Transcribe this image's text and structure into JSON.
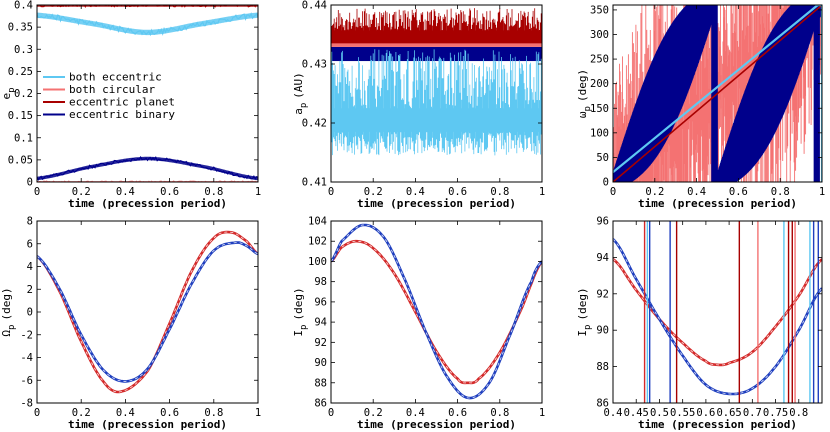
{
  "chart_data": [
    {
      "type": "line",
      "title": "",
      "xlabel": "time (precession period)",
      "ylabel": "e_p",
      "ylabel_main": "e",
      "ylabel_sub": "p",
      "xlim": [
        0,
        1
      ],
      "ylim": [
        0,
        0.4
      ],
      "xticks": [
        "0",
        "0.2",
        "0.4",
        "0.6",
        "0.8",
        "1"
      ],
      "yticks": [
        "0",
        "0.05",
        "0.1",
        "0.15",
        "0.2",
        "0.25",
        "0.3",
        "0.35",
        "0.4"
      ],
      "legend": {
        "position": "center-left",
        "entries": [
          "both eccentric",
          "both circular",
          "eccentric planet",
          "eccentric binary"
        ]
      },
      "series": [
        {
          "name": "eccentric planet",
          "color": "#a80000",
          "x": [
            0,
            1
          ],
          "values": [
            0.4,
            0.4
          ],
          "band": 0.004
        },
        {
          "name": "both eccentric",
          "color": "#5ec8f2",
          "x": [
            0,
            0.25,
            0.5,
            0.75,
            1
          ],
          "values": [
            0.377,
            0.358,
            0.338,
            0.358,
            0.377
          ],
          "band": 0.006
        },
        {
          "name": "eccentric binary",
          "color": "#00008b",
          "x": [
            0,
            0.25,
            0.5,
            0.75,
            1
          ],
          "values": [
            0.008,
            0.035,
            0.053,
            0.035,
            0.008
          ],
          "band": 0.004
        },
        {
          "name": "both circular",
          "color": "#f47272",
          "x": [
            0,
            1
          ],
          "values": [
            0.0,
            0.0
          ],
          "band": 0.002
        }
      ]
    },
    {
      "type": "line",
      "title": "",
      "xlabel": "time (precession period)",
      "ylabel": "a_p (AU)",
      "ylabel_main": "a",
      "ylabel_sub": "p",
      "ylabel_unit": "(AU)",
      "xlim": [
        0,
        1
      ],
      "ylim": [
        0.41,
        0.44
      ],
      "xticks": [
        "0",
        "0.2",
        "0.4",
        "0.6",
        "0.8",
        "1"
      ],
      "yticks": [
        "0.41",
        "0.42",
        "0.43",
        "0.44"
      ],
      "series": [
        {
          "name": "eccentric planet",
          "color": "#a80000",
          "x": [
            0,
            1
          ],
          "values": [
            0.4345,
            0.4345
          ],
          "band": 0.0012,
          "spikes_to": 0.4395
        },
        {
          "name": "eccentric binary",
          "color": "#00008b",
          "x": [
            0,
            1
          ],
          "values": [
            0.4317,
            0.4317
          ],
          "band": 0.0012
        },
        {
          "name": "both circular",
          "color": "#f47272",
          "x": [
            0,
            1
          ],
          "values": [
            0.4332,
            0.4332
          ],
          "band": 0.0003
        },
        {
          "name": "both eccentric",
          "color": "#5ec8f2",
          "x": [
            0,
            1
          ],
          "values": [
            0.4205,
            0.4205
          ],
          "band": 0.002,
          "spikes_to": 0.4325,
          "dips_to": 0.4145
        }
      ]
    },
    {
      "type": "line",
      "title": "",
      "xlabel": "time (precession period)",
      "ylabel": "ω_p (deg)",
      "ylabel_main": "ω",
      "ylabel_sub": "p",
      "ylabel_unit": "(deg)",
      "xlim": [
        0,
        1
      ],
      "ylim": [
        0,
        360
      ],
      "xticks": [
        "0",
        "0.2",
        "0.4",
        "0.6",
        "0.8",
        "1"
      ],
      "yticks": [
        "0",
        "50",
        "100",
        "150",
        "200",
        "250",
        "300",
        "350"
      ],
      "series": [
        {
          "name": "both circular",
          "color": "#f47272",
          "x": [
            0,
            1
          ],
          "values": [
            0,
            360
          ],
          "scatter": true
        },
        {
          "name": "eccentric binary",
          "color": "#00008b",
          "x": [
            0,
            0.47,
            0.5,
            0.97,
            1
          ],
          "values": [
            0,
            360,
            0,
            360,
            0
          ],
          "oscillating": true
        },
        {
          "name": "eccentric planet",
          "color": "#a80000",
          "x": [
            0,
            1
          ],
          "values": [
            0,
            360
          ]
        },
        {
          "name": "both eccentric",
          "color": "#5ec8f2",
          "x": [
            0,
            0.98,
            1
          ],
          "values": [
            20,
            360,
            0
          ]
        }
      ]
    },
    {
      "type": "line",
      "title": "",
      "xlabel": "time (precession period)",
      "ylabel": "Ω_p (deg)",
      "ylabel_main": "Ω",
      "ylabel_sub": "p",
      "ylabel_unit": "(deg)",
      "xlim": [
        0,
        1
      ],
      "ylim": [
        -8,
        8
      ],
      "xticks": [
        "0",
        "0.2",
        "0.4",
        "0.6",
        "0.8",
        "1"
      ],
      "yticks": [
        "-8",
        "-6",
        "-4",
        "-2",
        "0",
        "2",
        "4",
        "6",
        "8"
      ],
      "series": [
        {
          "name": "eccentric planet",
          "color": "#d42a2a",
          "x": [
            0,
            0.1,
            0.2,
            0.3,
            0.38,
            0.5,
            0.6,
            0.7,
            0.8,
            0.88,
            0.95,
            1.0
          ],
          "values": [
            4.9,
            1.9,
            -2.6,
            -6.1,
            -7.0,
            -5.2,
            -1.0,
            3.6,
            6.5,
            7.0,
            6.2,
            5.1
          ]
        },
        {
          "name": "eccentric binary",
          "color": "#1f3fbf",
          "x": [
            0,
            0.1,
            0.2,
            0.3,
            0.4,
            0.5,
            0.6,
            0.7,
            0.8,
            0.9,
            0.95,
            1.0
          ],
          "values": [
            4.9,
            2.1,
            -2.0,
            -5.1,
            -6.1,
            -5.0,
            -1.5,
            2.5,
            5.4,
            6.1,
            5.8,
            5.1
          ]
        }
      ]
    },
    {
      "type": "line",
      "title": "",
      "xlabel": "time (precession period)",
      "ylabel": "I_p (deg)",
      "ylabel_main": "I",
      "ylabel_sub": "p",
      "ylabel_unit": "(deg)",
      "xlim": [
        0,
        1
      ],
      "ylim": [
        86,
        104
      ],
      "xticks": [
        "0",
        "0.2",
        "0.4",
        "0.6",
        "0.8",
        "1"
      ],
      "yticks": [
        "86",
        "88",
        "90",
        "92",
        "94",
        "96",
        "98",
        "100",
        "102",
        "104"
      ],
      "series": [
        {
          "name": "eccentric planet",
          "color": "#d42a2a",
          "x": [
            0,
            0.05,
            0.12,
            0.2,
            0.3,
            0.4,
            0.5,
            0.6,
            0.65,
            0.7,
            0.8,
            0.9,
            1.0
          ],
          "values": [
            100.0,
            101.4,
            102.0,
            101.3,
            98.8,
            95.0,
            91.1,
            88.4,
            88.0,
            88.4,
            91.0,
            95.2,
            100.0
          ]
        },
        {
          "name": "eccentric binary",
          "color": "#1f3fbf",
          "x": [
            0,
            0.05,
            0.15,
            0.25,
            0.35,
            0.45,
            0.55,
            0.65,
            0.75,
            0.85,
            0.95,
            1.0
          ],
          "values": [
            100.0,
            102.0,
            103.6,
            102.4,
            98.2,
            93.0,
            88.6,
            86.5,
            88.0,
            92.8,
            98.0,
            100.0
          ]
        }
      ]
    },
    {
      "type": "line",
      "title": "",
      "xlabel": "time (precession period)",
      "ylabel": "I_p (deg)",
      "ylabel_main": "I",
      "ylabel_sub": "p",
      "ylabel_unit": "(deg)",
      "xlim": [
        0.4,
        0.85
      ],
      "ylim": [
        86,
        96
      ],
      "xticks": [
        "0.4",
        "0.45",
        "0.5",
        "0.55",
        "0.6",
        "0.65",
        "0.7",
        "0.75",
        "0.8"
      ],
      "yticks": [
        "86",
        "88",
        "90",
        "92",
        "94",
        "96"
      ],
      "vlines": [
        {
          "x": 0.468,
          "color": "#d42a2a"
        },
        {
          "x": 0.474,
          "color": "#5ec8f2"
        },
        {
          "x": 0.479,
          "color": "#1f3fbf"
        },
        {
          "x": 0.523,
          "color": "#1f3fbf"
        },
        {
          "x": 0.537,
          "color": "#a80000"
        },
        {
          "x": 0.672,
          "color": "#a80000"
        },
        {
          "x": 0.712,
          "color": "#f47272"
        },
        {
          "x": 0.768,
          "color": "#5ec8f2"
        },
        {
          "x": 0.778,
          "color": "#a80000"
        },
        {
          "x": 0.786,
          "color": "#a80000"
        },
        {
          "x": 0.792,
          "color": "#f47272"
        },
        {
          "x": 0.824,
          "color": "#5ec8f2"
        },
        {
          "x": 0.832,
          "color": "#1f3fbf"
        },
        {
          "x": 0.842,
          "color": "#1f3fbf"
        }
      ],
      "series": [
        {
          "name": "eccentric planet",
          "color": "#d42a2a",
          "x": [
            0.4,
            0.45,
            0.5,
            0.55,
            0.6,
            0.625,
            0.65,
            0.7,
            0.75,
            0.8,
            0.85
          ],
          "values": [
            93.9,
            92.2,
            90.6,
            89.3,
            88.3,
            88.1,
            88.2,
            88.8,
            90.2,
            91.9,
            93.9
          ]
        },
        {
          "name": "eccentric binary",
          "color": "#1f3fbf",
          "x": [
            0.4,
            0.45,
            0.5,
            0.55,
            0.6,
            0.65,
            0.7,
            0.75,
            0.8,
            0.85
          ],
          "values": [
            95.0,
            92.8,
            90.6,
            88.6,
            87.0,
            86.5,
            86.8,
            88.0,
            90.0,
            92.3
          ]
        }
      ]
    }
  ]
}
